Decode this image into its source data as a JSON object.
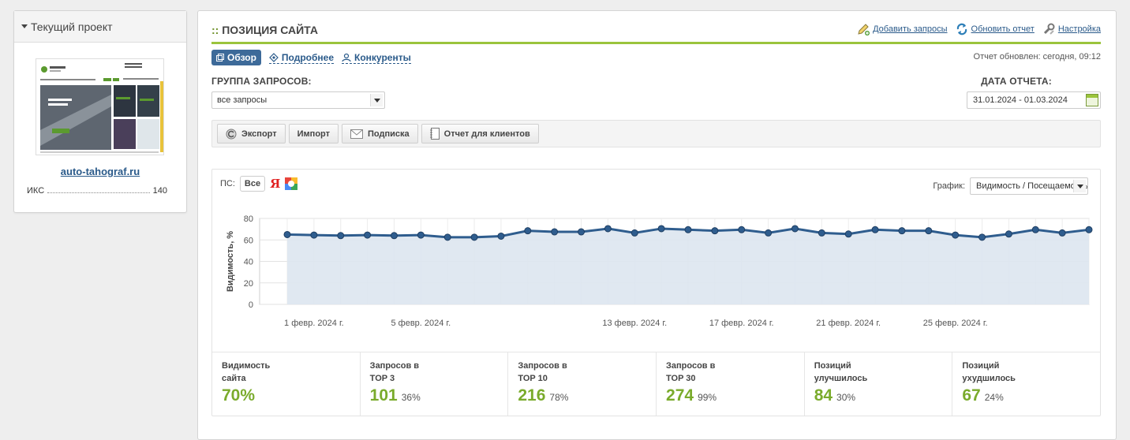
{
  "left_panel": {
    "header": "Текущий проект",
    "site": "auto-tahograf.ru",
    "iks_label": "ИКС",
    "iks_value": "140"
  },
  "main": {
    "title": "ПОЗИЦИЯ САЙТА",
    "title_prefix": "::",
    "actions": {
      "add": "Добавить запросы",
      "refresh": "Обновить отчет",
      "settings": "Настройка"
    },
    "tabs": {
      "overview": "Обзор",
      "details": "Подробнее",
      "competitors": "Конкуренты"
    },
    "updated": "Отчет обновлен: сегодня, 09:12",
    "group_label": "ГРУППА ЗАПРОСОВ:",
    "group_value": "все запросы",
    "date_label": "ДАТА ОТЧЕТА:",
    "date_value": "31.01.2024 - 01.03.2024",
    "toolbar": {
      "export": "Экспорт",
      "import": "Импорт",
      "subscribe": "Подписка",
      "clients": "Отчет для клиентов"
    },
    "ps_label": "ПС:",
    "ps_all": "Все",
    "ps_yandex": "Я",
    "graph_label": "График:",
    "graph_value": "Видимость / Посещаемость"
  },
  "stats": [
    {
      "label1": "Видимость",
      "label2": "сайта",
      "value": "70%",
      "pct": ""
    },
    {
      "label1": "Запросов в",
      "label2": "TOP 3",
      "value": "101",
      "pct": "36%"
    },
    {
      "label1": "Запросов в",
      "label2": "TOP 10",
      "value": "216",
      "pct": "78%"
    },
    {
      "label1": "Запросов в",
      "label2": "TOP 30",
      "value": "274",
      "pct": "99%"
    },
    {
      "label1": "Позиций",
      "label2": "улучшилось",
      "value": "84",
      "pct": "30%"
    },
    {
      "label1": "Позиций",
      "label2": "ухудшилось",
      "value": "67",
      "pct": "24%"
    }
  ],
  "colors": {
    "accent": "#9bc43c",
    "stat_green": "#7aab2c",
    "line": "#2f5d8e",
    "tab_active": "#3d6a99"
  },
  "chart_data": {
    "type": "area",
    "ylabel": "Видимость, %",
    "ylim": [
      0,
      80
    ],
    "yticks": [
      0,
      20,
      40,
      60,
      80
    ],
    "x_labels": [
      "1 февр. 2024 г.",
      "5 февр. 2024 г.",
      "13 февр. 2024 г.",
      "17 февр. 2024 г.",
      "21 февр. 2024 г.",
      "25 февр. 2024 г."
    ],
    "x_label_index": [
      1,
      5,
      13,
      17,
      21,
      25
    ],
    "x_dates": [
      "31.01.2024",
      "01.02.2024",
      "02.02.2024",
      "03.02.2024",
      "04.02.2024",
      "05.02.2024",
      "06.02.2024",
      "07.02.2024",
      "08.02.2024",
      "09.02.2024",
      "10.02.2024",
      "11.02.2024",
      "12.02.2024",
      "13.02.2024",
      "14.02.2024",
      "15.02.2024",
      "16.02.2024",
      "17.02.2024",
      "18.02.2024",
      "19.02.2024",
      "20.02.2024",
      "21.02.2024",
      "22.02.2024",
      "23.02.2024",
      "24.02.2024",
      "25.02.2024",
      "26.02.2024",
      "27.02.2024",
      "28.02.2024",
      "29.02.2024",
      "01.03.2024"
    ],
    "series": [
      {
        "values": [
          65,
          64.5,
          64,
          64.5,
          64,
          64.5,
          62.5,
          62.5,
          63.5,
          68.5,
          67.5,
          67.5,
          70.5,
          66.5,
          70.5,
          69.5,
          68.5,
          69.5,
          66.5,
          70.5,
          66.5,
          65.5,
          69.5,
          68.5,
          68.5,
          64.5,
          62.5,
          65.5,
          69.5,
          66.5,
          69.5
        ]
      }
    ],
    "grid": true
  }
}
